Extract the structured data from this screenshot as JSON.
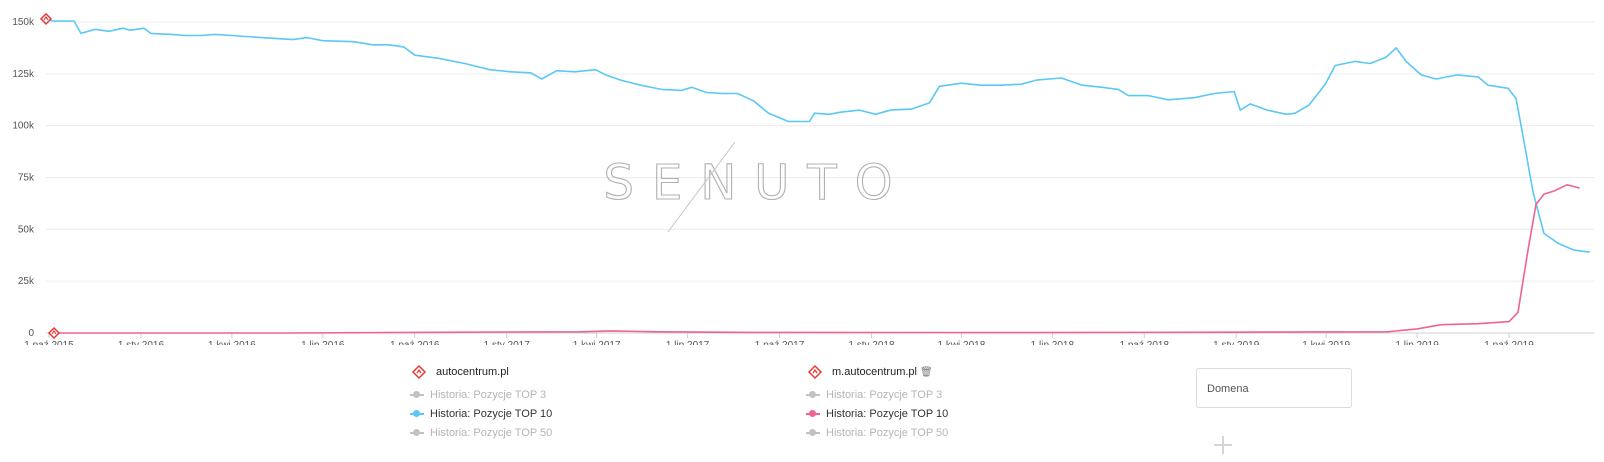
{
  "chart_data": {
    "type": "line",
    "watermark": "SENUTO",
    "x_range": [
      "2015-09-28",
      "2019-12-25"
    ],
    "ylim": [
      0,
      150000
    ],
    "yticks": [
      0,
      25000,
      50000,
      75000,
      100000,
      125000,
      150000
    ],
    "ytick_labels": [
      "0",
      "25k",
      "50k",
      "75k",
      "100k",
      "125k",
      "150k"
    ],
    "xticks": [
      "2015-10-01",
      "2016-01-01",
      "2016-04-01",
      "2016-07-01",
      "2016-10-01",
      "2017-01-01",
      "2017-04-01",
      "2017-07-01",
      "2017-10-01",
      "2018-01-01",
      "2018-04-01",
      "2018-07-01",
      "2018-10-01",
      "2019-01-01",
      "2019-04-01",
      "2019-07-01",
      "2019-10-01"
    ],
    "xtick_labels": [
      "1 paź 2015",
      "1 sty 2016",
      "1 kwi 2016",
      "1 lip 2016",
      "1 paź 2016",
      "1 sty 2017",
      "1 kwi 2017",
      "1 lip 2017",
      "1 paź 2017",
      "1 sty 2018",
      "1 kwi 2018",
      "1 lip 2018",
      "1 paź 2018",
      "1 sty 2019",
      "1 kwi 2019",
      "1 lip 2019",
      "1 paź 2019"
    ],
    "grid": true,
    "series": [
      {
        "name": "Historia: Pozycje TOP 10",
        "domain": "autocentrum.pl",
        "color": "#5bc8f5",
        "points": [
          [
            "2015-09-28",
            151500
          ],
          [
            "2015-10-05",
            150500
          ],
          [
            "2015-10-26",
            150500
          ],
          [
            "2015-11-02",
            144500
          ],
          [
            "2015-11-16",
            146500
          ],
          [
            "2015-11-30",
            145500
          ],
          [
            "2015-12-14",
            147000
          ],
          [
            "2015-12-21",
            146000
          ],
          [
            "2016-01-04",
            147000
          ],
          [
            "2016-01-11",
            144500
          ],
          [
            "2016-02-01",
            144000
          ],
          [
            "2016-02-15",
            143500
          ],
          [
            "2016-03-01",
            143500
          ],
          [
            "2016-03-15",
            144000
          ],
          [
            "2016-04-01",
            143500
          ],
          [
            "2016-05-01",
            142500
          ],
          [
            "2016-06-01",
            141500
          ],
          [
            "2016-06-15",
            142500
          ],
          [
            "2016-07-01",
            141000
          ],
          [
            "2016-08-01",
            140500
          ],
          [
            "2016-08-20",
            139000
          ],
          [
            "2016-09-05",
            139000
          ],
          [
            "2016-09-20",
            138000
          ],
          [
            "2016-10-01",
            134000
          ],
          [
            "2016-10-25",
            132500
          ],
          [
            "2016-11-20",
            130000
          ],
          [
            "2016-12-15",
            127000
          ],
          [
            "2017-01-05",
            126000
          ],
          [
            "2017-01-25",
            125500
          ],
          [
            "2017-02-05",
            122500
          ],
          [
            "2017-02-20",
            126500
          ],
          [
            "2017-03-10",
            126000
          ],
          [
            "2017-03-31",
            127000
          ],
          [
            "2017-04-10",
            124500
          ],
          [
            "2017-04-25",
            122000
          ],
          [
            "2017-05-15",
            119500
          ],
          [
            "2017-06-05",
            117500
          ],
          [
            "2017-06-25",
            117000
          ],
          [
            "2017-07-05",
            118500
          ],
          [
            "2017-07-20",
            116000
          ],
          [
            "2017-08-05",
            115500
          ],
          [
            "2017-08-20",
            115500
          ],
          [
            "2017-09-05",
            112000
          ],
          [
            "2017-09-20",
            106000
          ],
          [
            "2017-10-10",
            102000
          ],
          [
            "2017-10-31",
            102000
          ],
          [
            "2017-11-05",
            106000
          ],
          [
            "2017-11-20",
            105500
          ],
          [
            "2017-12-01",
            106500
          ],
          [
            "2017-12-20",
            107500
          ],
          [
            "2018-01-05",
            105500
          ],
          [
            "2018-01-20",
            107500
          ],
          [
            "2018-02-10",
            108000
          ],
          [
            "2018-02-28",
            111000
          ],
          [
            "2018-03-10",
            119000
          ],
          [
            "2018-04-01",
            120500
          ],
          [
            "2018-04-20",
            119500
          ],
          [
            "2018-05-10",
            119500
          ],
          [
            "2018-05-31",
            120000
          ],
          [
            "2018-06-15",
            122000
          ],
          [
            "2018-07-10",
            123000
          ],
          [
            "2018-07-31",
            119500
          ],
          [
            "2018-08-20",
            118500
          ],
          [
            "2018-09-05",
            117500
          ],
          [
            "2018-09-15",
            114500
          ],
          [
            "2018-10-05",
            114500
          ],
          [
            "2018-10-25",
            112500
          ],
          [
            "2018-11-20",
            113500
          ],
          [
            "2018-12-10",
            115500
          ],
          [
            "2018-12-30",
            116500
          ],
          [
            "2019-01-05",
            107500
          ],
          [
            "2019-01-15",
            110500
          ],
          [
            "2019-02-01",
            107500
          ],
          [
            "2019-02-20",
            105500
          ],
          [
            "2019-03-01",
            106000
          ],
          [
            "2019-03-15",
            110000
          ],
          [
            "2019-03-31",
            120000
          ],
          [
            "2019-04-10",
            129000
          ],
          [
            "2019-04-30",
            131000
          ],
          [
            "2019-05-15",
            130000
          ],
          [
            "2019-05-31",
            133000
          ],
          [
            "2019-06-10",
            137500
          ],
          [
            "2019-06-20",
            131000
          ],
          [
            "2019-07-05",
            124500
          ],
          [
            "2019-07-20",
            122500
          ],
          [
            "2019-08-10",
            124500
          ],
          [
            "2019-08-31",
            123500
          ],
          [
            "2019-09-10",
            119500
          ],
          [
            "2019-09-30",
            118000
          ],
          [
            "2019-10-08",
            113000
          ],
          [
            "2019-10-15",
            95000
          ],
          [
            "2019-10-25",
            68000
          ],
          [
            "2019-11-05",
            48000
          ],
          [
            "2019-11-20",
            43000
          ],
          [
            "2019-12-05",
            40000
          ],
          [
            "2019-12-20",
            39000
          ]
        ]
      },
      {
        "name": "Historia: Pozycje TOP 10",
        "domain": "m.autocentrum.pl",
        "color": "#f06292",
        "points": [
          [
            "2015-10-06",
            0
          ],
          [
            "2016-06-01",
            0
          ],
          [
            "2017-01-01",
            500
          ],
          [
            "2017-03-15",
            600
          ],
          [
            "2017-04-15",
            1000
          ],
          [
            "2017-06-01",
            600
          ],
          [
            "2017-09-01",
            300
          ],
          [
            "2018-06-01",
            200
          ],
          [
            "2019-01-01",
            400
          ],
          [
            "2019-06-01",
            600
          ],
          [
            "2019-07-01",
            2000
          ],
          [
            "2019-07-25",
            4000
          ],
          [
            "2019-08-31",
            4500
          ],
          [
            "2019-10-01",
            5500
          ],
          [
            "2019-10-10",
            10000
          ],
          [
            "2019-10-20",
            40000
          ],
          [
            "2019-10-28",
            62000
          ],
          [
            "2019-11-05",
            67000
          ],
          [
            "2019-11-15",
            68500
          ],
          [
            "2019-11-28",
            71500
          ],
          [
            "2019-12-10",
            70000
          ]
        ]
      }
    ],
    "markers": [
      {
        "date": "2015-09-28",
        "value": 151500,
        "color": "#e53935"
      },
      {
        "date": "2015-10-06",
        "value": 0,
        "color": "#e53935"
      }
    ]
  },
  "legend": {
    "domains": [
      {
        "name": "autocentrum.pl",
        "trash": "",
        "icon": "diamond-icon",
        "items": [
          {
            "label": "Historia: Pozycje TOP 3",
            "active": false,
            "color": "#c2c2c2"
          },
          {
            "label": "Historia: Pozycje TOP 10",
            "active": true,
            "color": "#5bc8f5"
          },
          {
            "label": "Historia: Pozycje TOP 50",
            "active": false,
            "color": "#c2c2c2"
          }
        ]
      },
      {
        "name": "m.autocentrum.pl",
        "trash": "🗑",
        "icon": "diamond-icon",
        "items": [
          {
            "label": "Historia: Pozycje TOP 3",
            "active": false,
            "color": "#c2c2c2"
          },
          {
            "label": "Historia: Pozycje TOP 10",
            "active": true,
            "color": "#f06292"
          },
          {
            "label": "Historia: Pozycje TOP 50",
            "active": false,
            "color": "#c2c2c2"
          }
        ]
      }
    ]
  },
  "domain_input": {
    "placeholder": "Domena",
    "value": ""
  },
  "add_button": {
    "icon": "plus-icon"
  }
}
